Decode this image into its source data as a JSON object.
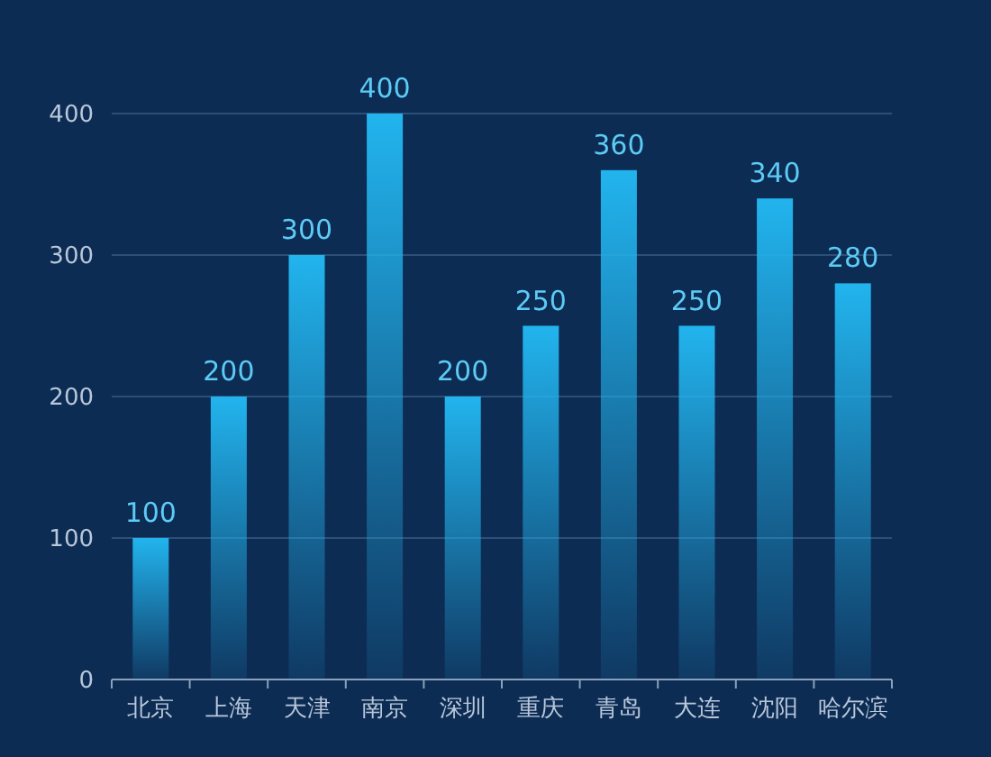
{
  "chart_data": {
    "type": "bar",
    "categories": [
      "北京",
      "上海",
      "天津",
      "南京",
      "深圳",
      "重庆",
      "青岛",
      "大连",
      "沈阳",
      "哈尔滨"
    ],
    "values": [
      100,
      200,
      300,
      400,
      200,
      250,
      360,
      250,
      340,
      280
    ],
    "color": "#22b4ee",
    "data_labels": true,
    "grid": "y",
    "ylim": [
      0,
      400
    ],
    "yticks": [
      0,
      100,
      200,
      300,
      400
    ]
  }
}
